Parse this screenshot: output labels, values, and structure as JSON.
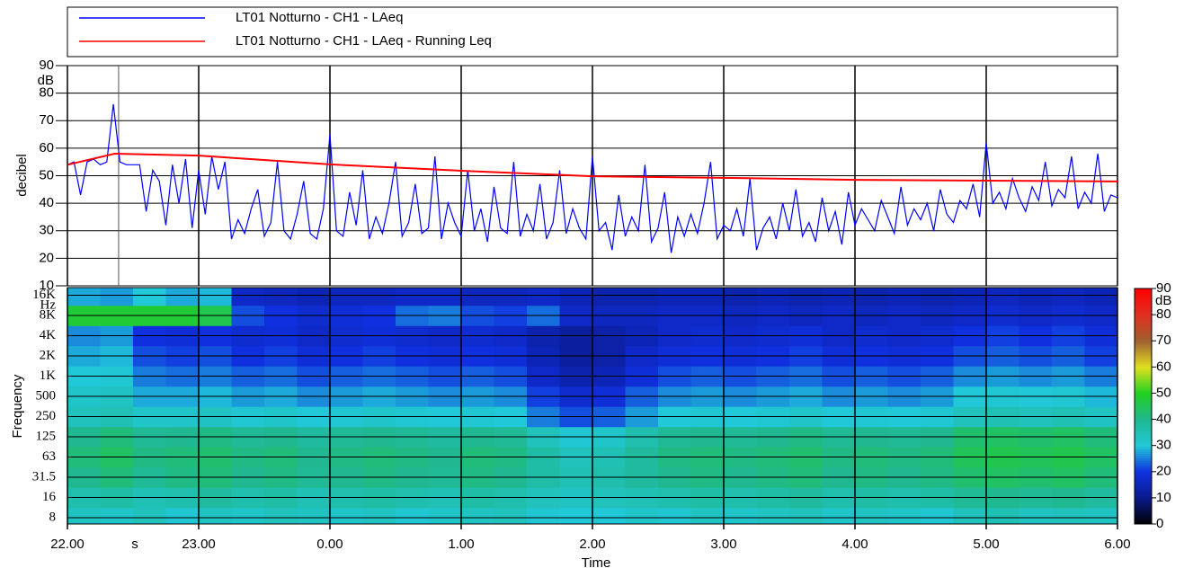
{
  "chart_data": [
    {
      "type": "line",
      "y_label": "decibel",
      "y_unit": "dB",
      "ylim": [
        10,
        90
      ],
      "yticks": [
        10,
        20,
        30,
        40,
        50,
        60,
        70,
        80,
        90
      ],
      "xlim": [
        0,
        8
      ],
      "xticks": [
        0,
        1,
        2,
        3,
        4,
        5,
        6,
        7,
        8
      ],
      "grid": true,
      "cursor_x": 0.39,
      "series": [
        {
          "name": "LT01 Notturno - CH1 - LAeq",
          "color": "#0000ff",
          "x": [
            0,
            0.05,
            0.1,
            0.15,
            0.2,
            0.25,
            0.3,
            0.35,
            0.4,
            0.45,
            0.5,
            0.55,
            0.6,
            0.65,
            0.7,
            0.75,
            0.8,
            0.85,
            0.9,
            0.95,
            1,
            1.05,
            1.1,
            1.15,
            1.2,
            1.25,
            1.3,
            1.35,
            1.4,
            1.45,
            1.5,
            1.55,
            1.6,
            1.65,
            1.7,
            1.75,
            1.8,
            1.85,
            1.9,
            1.95,
            2,
            2.05,
            2.1,
            2.15,
            2.2,
            2.25,
            2.3,
            2.35,
            2.4,
            2.45,
            2.5,
            2.55,
            2.6,
            2.65,
            2.7,
            2.75,
            2.8,
            2.85,
            2.9,
            2.95,
            3,
            3.05,
            3.1,
            3.15,
            3.2,
            3.25,
            3.3,
            3.35,
            3.4,
            3.45,
            3.5,
            3.55,
            3.6,
            3.65,
            3.7,
            3.75,
            3.8,
            3.85,
            3.9,
            3.95,
            4,
            4.05,
            4.1,
            4.15,
            4.2,
            4.25,
            4.3,
            4.35,
            4.4,
            4.45,
            4.5,
            4.55,
            4.6,
            4.65,
            4.7,
            4.75,
            4.8,
            4.85,
            4.9,
            4.95,
            5,
            5.05,
            5.1,
            5.15,
            5.2,
            5.25,
            5.3,
            5.35,
            5.4,
            5.45,
            5.5,
            5.55,
            5.6,
            5.65,
            5.7,
            5.75,
            5.8,
            5.85,
            5.9,
            5.95,
            6,
            6.05,
            6.1,
            6.15,
            6.2,
            6.25,
            6.3,
            6.35,
            6.4,
            6.45,
            6.5,
            6.55,
            6.6,
            6.65,
            6.7,
            6.75,
            6.8,
            6.85,
            6.9,
            6.95,
            7,
            7.05,
            7.1,
            7.15,
            7.2,
            7.25,
            7.3,
            7.35,
            7.4,
            7.45,
            7.5,
            7.55,
            7.6,
            7.65,
            7.7,
            7.75,
            7.8,
            7.85,
            7.9,
            7.95,
            8
          ],
          "values": [
            54,
            55,
            43,
            55,
            56,
            54,
            55,
            76,
            55,
            54,
            54,
            54,
            37,
            52,
            48,
            32,
            54,
            40,
            56,
            31,
            52,
            36,
            57,
            45,
            55,
            27,
            34,
            29,
            38,
            45,
            28,
            33,
            55,
            30,
            27,
            36,
            48,
            29,
            27,
            38,
            65,
            30,
            28,
            44,
            32,
            52,
            27,
            35,
            29,
            40,
            55,
            28,
            33,
            47,
            29,
            31,
            57,
            27,
            40,
            33,
            28,
            52,
            30,
            38,
            26,
            46,
            31,
            29,
            55,
            28,
            36,
            30,
            47,
            27,
            33,
            52,
            29,
            38,
            31,
            27,
            57,
            30,
            33,
            23,
            43,
            28,
            35,
            30,
            54,
            26,
            31,
            44,
            22,
            35,
            28,
            36,
            29,
            40,
            55,
            27,
            32,
            30,
            38,
            28,
            49,
            23,
            31,
            35,
            27,
            40,
            30,
            45,
            28,
            33,
            26,
            42,
            30,
            37,
            25,
            44,
            32,
            38,
            34,
            30,
            41,
            35,
            29,
            46,
            32,
            38,
            34,
            40,
            30,
            45,
            36,
            33,
            41,
            38,
            47,
            35,
            62,
            40,
            44,
            38,
            49,
            42,
            37,
            46,
            41,
            55,
            39,
            45,
            42,
            57,
            38,
            44,
            40,
            58,
            37,
            43,
            42
          ]
        },
        {
          "name": "LT01 Notturno - CH1 - LAeq - Running Leq",
          "color": "#ff0000",
          "x": [
            0,
            0.36,
            1,
            2,
            3,
            4,
            5,
            6,
            7,
            8
          ],
          "values": [
            54,
            58,
            57.3,
            54.1,
            51.8,
            49.8,
            49.2,
            48.5,
            48.2,
            47.9
          ]
        }
      ]
    },
    {
      "type": "heatmap",
      "x_label": "Time",
      "x_unit": "s",
      "y_label": "Frequency",
      "y_unit": "Hz",
      "xlim": [
        0,
        8
      ],
      "xticks": [
        {
          "value": 0,
          "label": "22.00"
        },
        {
          "value": 1,
          "label": "23.00"
        },
        {
          "value": 2,
          "label": "0.00"
        },
        {
          "value": 3,
          "label": "1.00"
        },
        {
          "value": 4,
          "label": "2.00"
        },
        {
          "value": 5,
          "label": "3.00"
        },
        {
          "value": 6,
          "label": "4.00"
        },
        {
          "value": 7,
          "label": "5.00"
        },
        {
          "value": 8,
          "label": "6.00"
        }
      ],
      "x_bins": [
        0,
        0.25,
        0.5,
        0.75,
        1,
        1.25,
        1.5,
        1.75,
        2,
        2.25,
        2.5,
        2.75,
        3,
        3.25,
        3.5,
        3.75,
        4,
        4.25,
        4.5,
        4.75,
        5,
        5.25,
        5.5,
        5.75,
        6,
        6.25,
        6.5,
        6.75,
        7,
        7.25,
        7.5,
        7.75,
        8
      ],
      "frequency_labels": [
        "8",
        "16",
        "31.5",
        "63",
        "125",
        "250",
        "500",
        "1K",
        "2K",
        "4K",
        "8K",
        "16K"
      ],
      "z": [
        [
          33,
          32,
          34,
          31,
          33,
          32,
          34,
          33,
          32,
          33,
          31,
          32,
          33,
          34,
          31,
          30,
          30,
          32,
          31,
          33,
          32,
          33,
          34,
          32,
          33,
          32,
          31,
          34,
          35,
          33,
          34,
          33
        ],
        [
          36,
          37,
          35,
          36,
          38,
          36,
          37,
          35,
          36,
          37,
          36,
          35,
          37,
          36,
          34,
          33,
          34,
          35,
          36,
          37,
          36,
          37,
          38,
          36,
          37,
          36,
          37,
          39,
          40,
          39,
          40,
          38
        ],
        [
          40,
          42,
          39,
          41,
          42,
          40,
          41,
          39,
          40,
          41,
          40,
          39,
          41,
          40,
          37,
          35,
          36,
          38,
          40,
          41,
          40,
          41,
          42,
          40,
          41,
          40,
          41,
          43,
          44,
          43,
          44,
          42
        ],
        [
          42,
          44,
          41,
          42,
          43,
          41,
          42,
          40,
          41,
          42,
          41,
          40,
          42,
          41,
          37,
          34,
          35,
          38,
          41,
          42,
          41,
          42,
          43,
          41,
          42,
          41,
          42,
          45,
          46,
          45,
          46,
          44
        ],
        [
          40,
          42,
          39,
          40,
          41,
          39,
          40,
          38,
          39,
          40,
          39,
          38,
          40,
          39,
          34,
          31,
          32,
          36,
          39,
          40,
          39,
          40,
          41,
          39,
          40,
          39,
          40,
          43,
          44,
          43,
          44,
          42
        ],
        [
          34,
          35,
          32,
          32,
          33,
          31,
          32,
          30,
          31,
          32,
          31,
          30,
          31,
          30,
          25,
          22,
          23,
          27,
          30,
          31,
          30,
          31,
          32,
          30,
          31,
          30,
          31,
          34,
          35,
          34,
          35,
          33
        ],
        [
          32,
          33,
          28,
          28,
          29,
          27,
          28,
          26,
          27,
          28,
          27,
          26,
          27,
          26,
          21,
          18,
          19,
          23,
          26,
          27,
          26,
          27,
          28,
          26,
          27,
          26,
          27,
          30,
          31,
          30,
          31,
          29
        ],
        [
          30,
          31,
          25,
          24,
          25,
          23,
          24,
          22,
          23,
          24,
          23,
          22,
          23,
          22,
          17,
          14,
          15,
          19,
          22,
          23,
          22,
          23,
          24,
          22,
          23,
          22,
          23,
          26,
          27,
          26,
          27,
          25
        ],
        [
          28,
          29,
          22,
          21,
          22,
          20,
          21,
          19,
          20,
          21,
          20,
          19,
          20,
          19,
          15,
          12,
          13,
          17,
          19,
          20,
          19,
          20,
          21,
          19,
          20,
          19,
          20,
          22,
          23,
          22,
          23,
          21
        ],
        [
          26,
          27,
          20,
          19,
          20,
          18,
          19,
          17,
          18,
          19,
          18,
          17,
          18,
          17,
          14,
          12,
          13,
          15,
          17,
          18,
          17,
          18,
          19,
          17,
          18,
          17,
          18,
          20,
          21,
          20,
          21,
          19
        ],
        [
          48,
          48,
          48,
          48,
          46,
          22,
          20,
          18,
          19,
          20,
          24,
          25,
          22,
          21,
          24,
          17,
          16,
          16,
          17,
          17,
          16,
          17,
          16,
          17,
          16,
          17,
          16,
          17,
          18,
          17,
          18,
          17
        ],
        [
          28,
          27,
          30,
          28,
          29,
          17,
          16,
          15,
          16,
          16,
          17,
          17,
          16,
          16,
          17,
          15,
          14,
          14,
          15,
          15,
          14,
          15,
          14,
          15,
          14,
          15,
          14,
          15,
          16,
          15,
          16,
          15
        ]
      ],
      "zlim": [
        0,
        90
      ],
      "zticks": [
        0,
        10,
        20,
        30,
        40,
        50,
        60,
        70,
        80,
        90
      ],
      "z_unit": "dB",
      "colorscale": [
        [
          0,
          "#000000"
        ],
        [
          10,
          "#0a1a8c"
        ],
        [
          20,
          "#1030e0"
        ],
        [
          30,
          "#20c8d8"
        ],
        [
          40,
          "#20b890"
        ],
        [
          50,
          "#20d020"
        ],
        [
          60,
          "#e0e020"
        ],
        [
          70,
          "#a06030"
        ],
        [
          80,
          "#e03020"
        ],
        [
          90,
          "#ff0000"
        ]
      ]
    }
  ]
}
